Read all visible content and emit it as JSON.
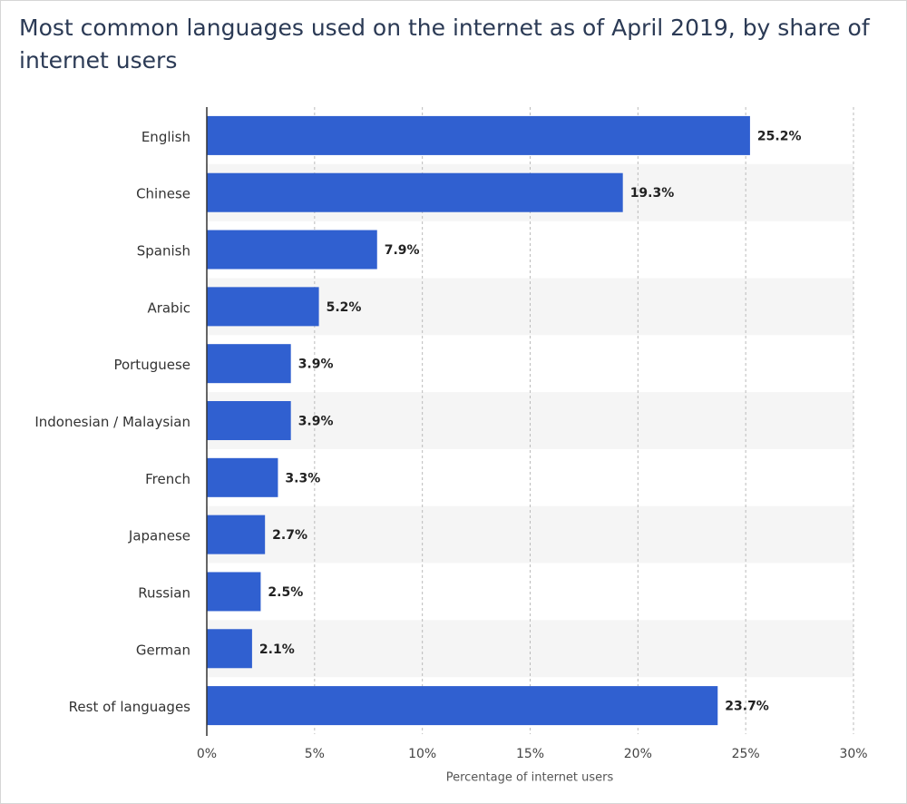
{
  "chart_data": {
    "type": "barh",
    "title": "Most common languages used on the internet as of April 2019, by share of internet users",
    "x_label": "Percentage of internet users",
    "categories": [
      "English",
      "Chinese",
      "Spanish",
      "Arabic",
      "Portuguese",
      "Indonesian / Malaysian",
      "French",
      "Japanese",
      "Russian",
      "German",
      "Rest of languages"
    ],
    "values": [
      25.2,
      19.3,
      7.9,
      5.2,
      3.9,
      3.9,
      3.3,
      2.7,
      2.5,
      2.1,
      23.7
    ],
    "value_labels": [
      "25.2%",
      "19.3%",
      "7.9%",
      "5.2%",
      "3.9%",
      "3.9%",
      "3.3%",
      "2.7%",
      "2.5%",
      "2.1%",
      "23.7%"
    ],
    "color": "#3060d0",
    "xlim": [
      0,
      30
    ],
    "xticks": [
      {
        "value": 0,
        "label": "0%"
      },
      {
        "value": 5,
        "label": "5%"
      },
      {
        "value": 10,
        "label": "10%"
      },
      {
        "value": 15,
        "label": "15%"
      },
      {
        "value": 20,
        "label": "20%"
      },
      {
        "value": 25,
        "label": "25%"
      },
      {
        "value": 30,
        "label": "30%"
      }
    ],
    "grid": true
  }
}
